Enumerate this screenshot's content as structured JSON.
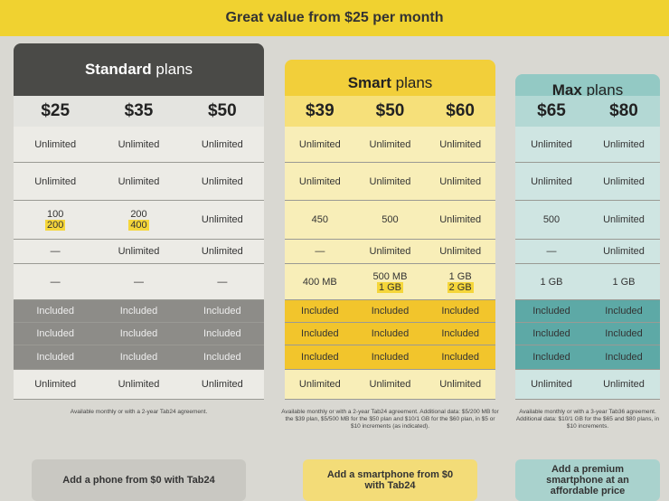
{
  "banner": "Great value from $25 per month",
  "groups": [
    {
      "name": "Standard",
      "suffix": "plans",
      "prices": [
        "$25",
        "$35",
        "$50"
      ],
      "rows": [
        [
          "Unlimited",
          "Unlimited",
          "Unlimited"
        ],
        [
          "Unlimited",
          "Unlimited",
          "Unlimited"
        ],
        [
          [
            "100",
            "200"
          ],
          [
            "200",
            "400"
          ],
          "Unlimited"
        ],
        [
          "—",
          "Unlimited",
          "Unlimited"
        ],
        [
          "—",
          "—",
          "—"
        ],
        [
          "Included",
          "Included",
          "Included"
        ],
        [
          "Included",
          "Included",
          "Included"
        ],
        [
          "Included",
          "Included",
          "Included"
        ],
        [
          "Unlimited",
          "Unlimited",
          "Unlimited"
        ]
      ],
      "note": "Available monthly or with a 2-year Tab24 agreement.",
      "button": "Add a phone from $0 with Tab24"
    },
    {
      "name": "Smart",
      "suffix": "plans",
      "prices": [
        "$39",
        "$50",
        "$60"
      ],
      "rows": [
        [
          "Unlimited",
          "Unlimited",
          "Unlimited"
        ],
        [
          "Unlimited",
          "Unlimited",
          "Unlimited"
        ],
        [
          "450",
          "500",
          "Unlimited"
        ],
        [
          "—",
          "Unlimited",
          "Unlimited"
        ],
        [
          "400 MB",
          [
            "500 MB",
            "1 GB"
          ],
          [
            "1 GB",
            "2 GB"
          ]
        ],
        [
          "Included",
          "Included",
          "Included"
        ],
        [
          "Included",
          "Included",
          "Included"
        ],
        [
          "Included",
          "Included",
          "Included"
        ],
        [
          "Unlimited",
          "Unlimited",
          "Unlimited"
        ]
      ],
      "note": "Available monthly or with a 2-year Tab24 agreement. Additional data: $5/200 MB for the $39 plan, $5/500 MB for the $50 plan and $10/1 GB for the $60 plan, in $5 or $10 increments (as indicated).",
      "button": "Add a smartphone from $0 with Tab24"
    },
    {
      "name": "Max",
      "suffix": "plans",
      "prices": [
        "$65",
        "$80"
      ],
      "rows": [
        [
          "Unlimited",
          "Unlimited"
        ],
        [
          "Unlimited",
          "Unlimited"
        ],
        [
          "500",
          "Unlimited"
        ],
        [
          "—",
          "Unlimited"
        ],
        [
          "1 GB",
          "1 GB"
        ],
        [
          "Included",
          "Included"
        ],
        [
          "Included",
          "Included"
        ],
        [
          "Included",
          "Included"
        ],
        [
          "Unlimited",
          "Unlimited"
        ]
      ],
      "note": "Available monthly or with a 3-year Tab36 agreement. Additional data: $10/1 GB for the $65 and $80 plans, in $10 increments.",
      "button": "Add a premium smartphone at an affordable price"
    }
  ]
}
